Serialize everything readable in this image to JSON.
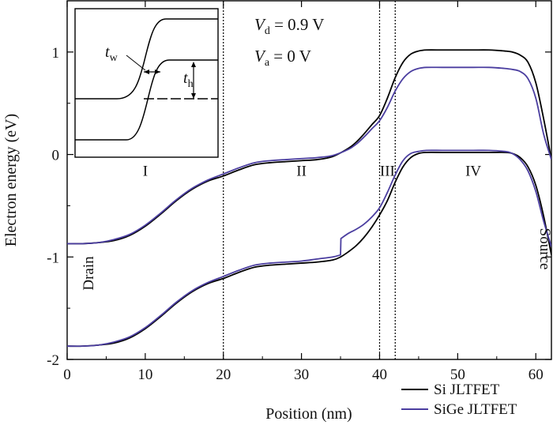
{
  "chart_data": {
    "type": "line",
    "title": "",
    "xlabel": "Position (nm)",
    "ylabel": "Electron energy (eV)",
    "xlim": [
      0,
      62
    ],
    "ylim": [
      -2,
      1.5
    ],
    "xticks": [
      0,
      10,
      20,
      30,
      40,
      50,
      60
    ],
    "yticks": [
      -2,
      -1,
      0,
      1
    ],
    "grid": false,
    "legend_position": "bottom-right",
    "region_boundaries": [
      20,
      40,
      42
    ],
    "regions": [
      {
        "label": "I",
        "x": 10
      },
      {
        "label": "II",
        "x": 30
      },
      {
        "label": "III",
        "x": 41
      },
      {
        "label": "IV",
        "x": 52
      }
    ],
    "side_labels": {
      "left": "Drain",
      "right": "Source"
    },
    "annotations": {
      "vd_symbol": "V",
      "vd_sub": "d",
      "vd_value": " = 0.9 V",
      "va_symbol": "V",
      "va_sub": "a",
      "va_value": " = 0 V"
    },
    "inset": {
      "tw_symbol": "t",
      "tw_sub": "w",
      "th_symbol": "t",
      "th_sub": "h"
    },
    "series": [
      {
        "name": "Si JLTFET",
        "color": "#000000",
        "bands": [
          {
            "band": "conduction",
            "x": [
              0,
              2,
              4,
              6,
              8,
              10,
              12,
              14,
              16,
              18,
              20,
              22,
              24,
              26,
              28,
              30,
              32,
              34,
              36,
              37,
              38,
              39,
              40,
              41,
              42,
              43,
              44,
              45,
              46,
              48,
              50,
              52,
              54,
              56,
              57,
              58,
              59,
              60,
              61,
              62
            ],
            "y": [
              -0.87,
              -0.87,
              -0.86,
              -0.84,
              -0.79,
              -0.7,
              -0.58,
              -0.45,
              -0.34,
              -0.26,
              -0.21,
              -0.15,
              -0.1,
              -0.08,
              -0.07,
              -0.06,
              -0.05,
              -0.02,
              0.06,
              0.12,
              0.2,
              0.29,
              0.38,
              0.55,
              0.75,
              0.9,
              0.98,
              1.01,
              1.02,
              1.02,
              1.02,
              1.02,
              1.02,
              1.01,
              1.0,
              0.97,
              0.9,
              0.7,
              0.35,
              -0.05
            ]
          },
          {
            "band": "valence",
            "x": [
              0,
              2,
              4,
              6,
              8,
              10,
              12,
              14,
              16,
              18,
              20,
              22,
              24,
              26,
              28,
              30,
              32,
              34,
              35,
              36,
              37,
              38,
              39,
              40,
              41,
              42,
              43,
              44,
              45,
              46,
              48,
              50,
              52,
              54,
              56,
              57,
              58,
              59,
              60,
              61,
              62
            ],
            "y": [
              -1.87,
              -1.87,
              -1.86,
              -1.84,
              -1.79,
              -1.7,
              -1.58,
              -1.45,
              -1.34,
              -1.26,
              -1.21,
              -1.15,
              -1.1,
              -1.08,
              -1.07,
              -1.06,
              -1.05,
              -1.03,
              -1.0,
              -0.95,
              -0.89,
              -0.81,
              -0.71,
              -0.59,
              -0.45,
              -0.27,
              -0.12,
              -0.03,
              0.01,
              0.02,
              0.02,
              0.02,
              0.02,
              0.02,
              0.02,
              0.01,
              -0.03,
              -0.12,
              -0.3,
              -0.6,
              -0.98
            ]
          }
        ]
      },
      {
        "name": "SiGe JLTFET",
        "color": "#4b3ea0",
        "bands": [
          {
            "band": "conduction",
            "x": [
              0,
              2,
              4,
              6,
              8,
              10,
              12,
              14,
              16,
              18,
              20,
              22,
              24,
              26,
              28,
              30,
              32,
              34,
              36,
              37,
              38,
              39,
              40,
              41,
              42,
              43,
              44,
              45,
              46,
              48,
              50,
              52,
              54,
              56,
              57,
              58,
              59,
              60,
              61,
              62
            ],
            "y": [
              -0.87,
              -0.87,
              -0.86,
              -0.83,
              -0.78,
              -0.69,
              -0.57,
              -0.44,
              -0.33,
              -0.25,
              -0.19,
              -0.13,
              -0.08,
              -0.06,
              -0.05,
              -0.04,
              -0.03,
              -0.01,
              0.05,
              0.1,
              0.17,
              0.25,
              0.33,
              0.46,
              0.62,
              0.74,
              0.81,
              0.84,
              0.85,
              0.85,
              0.85,
              0.85,
              0.85,
              0.84,
              0.83,
              0.81,
              0.74,
              0.55,
              0.2,
              -0.05
            ]
          },
          {
            "band": "valence",
            "x": [
              0,
              2,
              4,
              6,
              8,
              10,
              12,
              14,
              16,
              18,
              20,
              22,
              24,
              26,
              28,
              30,
              32,
              34,
              35,
              35.05,
              36,
              37,
              38,
              39,
              40,
              41,
              42,
              43,
              44,
              45,
              46,
              48,
              50,
              52,
              54,
              56,
              57,
              58,
              59,
              60,
              61,
              62
            ],
            "y": [
              -1.87,
              -1.87,
              -1.86,
              -1.83,
              -1.78,
              -1.69,
              -1.57,
              -1.44,
              -1.33,
              -1.25,
              -1.19,
              -1.13,
              -1.08,
              -1.06,
              -1.05,
              -1.04,
              -1.02,
              -1.0,
              -0.98,
              -0.82,
              -0.77,
              -0.73,
              -0.68,
              -0.61,
              -0.52,
              -0.37,
              -0.2,
              -0.06,
              0.01,
              0.03,
              0.04,
              0.04,
              0.04,
              0.04,
              0.04,
              0.03,
              0.01,
              -0.05,
              -0.16,
              -0.36,
              -0.65,
              -0.9
            ]
          }
        ]
      }
    ]
  }
}
